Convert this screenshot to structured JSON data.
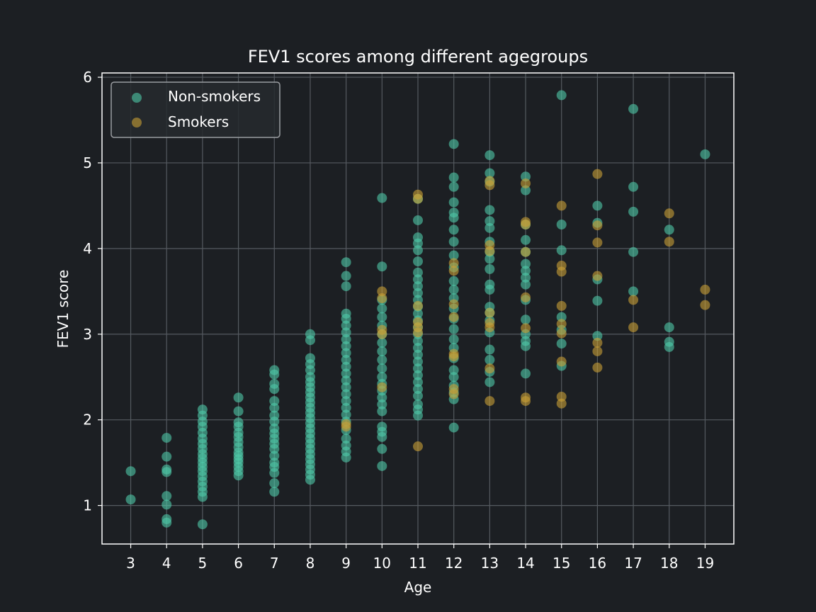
{
  "chart_data": {
    "type": "scatter",
    "title": "FEV1 scores among different agegroups",
    "xlabel": "Age",
    "ylabel": "FEV1 score",
    "xlim": [
      2.2,
      19.8
    ],
    "ylim": [
      0.55,
      6.05
    ],
    "xticks": [
      3,
      4,
      5,
      6,
      7,
      8,
      9,
      10,
      11,
      12,
      13,
      14,
      15,
      16,
      17,
      18,
      19
    ],
    "yticks": [
      1,
      2,
      3,
      4,
      5,
      6
    ],
    "grid": true,
    "legend_position": "top-left",
    "colors": {
      "background": "#1c1f23",
      "frame": "#ffffff",
      "grid": "#555a60",
      "non_smokers": "#4ec9a8",
      "smokers": "#c9a035"
    },
    "series": [
      {
        "name": "Non-smokers",
        "points": [
          [
            3,
            1.4
          ],
          [
            3,
            1.07
          ],
          [
            4,
            1.79
          ],
          [
            4,
            1.57
          ],
          [
            4,
            1.42
          ],
          [
            4,
            1.39
          ],
          [
            4,
            1.11
          ],
          [
            4,
            1.01
          ],
          [
            4,
            0.84
          ],
          [
            4,
            0.8
          ],
          [
            5,
            2.12
          ],
          [
            5,
            2.05
          ],
          [
            5,
            1.98
          ],
          [
            5,
            1.92
          ],
          [
            5,
            1.85
          ],
          [
            5,
            1.78
          ],
          [
            5,
            1.72
          ],
          [
            5,
            1.66
          ],
          [
            5,
            1.6
          ],
          [
            5,
            1.55
          ],
          [
            5,
            1.5
          ],
          [
            5,
            1.45
          ],
          [
            5,
            1.4
          ],
          [
            5,
            1.34
          ],
          [
            5,
            1.28
          ],
          [
            5,
            1.22
          ],
          [
            5,
            1.16
          ],
          [
            5,
            1.1
          ],
          [
            5,
            0.78
          ],
          [
            6,
            2.26
          ],
          [
            6,
            2.1
          ],
          [
            6,
            1.97
          ],
          [
            6,
            1.92
          ],
          [
            6,
            1.85
          ],
          [
            6,
            1.8
          ],
          [
            6,
            1.74
          ],
          [
            6,
            1.68
          ],
          [
            6,
            1.62
          ],
          [
            6,
            1.58
          ],
          [
            6,
            1.54
          ],
          [
            6,
            1.5
          ],
          [
            6,
            1.45
          ],
          [
            6,
            1.4
          ],
          [
            6,
            1.35
          ],
          [
            7,
            2.58
          ],
          [
            7,
            2.53
          ],
          [
            7,
            2.42
          ],
          [
            7,
            2.36
          ],
          [
            7,
            2.22
          ],
          [
            7,
            2.14
          ],
          [
            7,
            2.05
          ],
          [
            7,
            1.98
          ],
          [
            7,
            1.9
          ],
          [
            7,
            1.84
          ],
          [
            7,
            1.78
          ],
          [
            7,
            1.72
          ],
          [
            7,
            1.66
          ],
          [
            7,
            1.58
          ],
          [
            7,
            1.5
          ],
          [
            7,
            1.45
          ],
          [
            7,
            1.38
          ],
          [
            7,
            1.26
          ],
          [
            7,
            1.16
          ],
          [
            8,
            3.0
          ],
          [
            8,
            2.93
          ],
          [
            8,
            2.72
          ],
          [
            8,
            2.65
          ],
          [
            8,
            2.58
          ],
          [
            8,
            2.5
          ],
          [
            8,
            2.44
          ],
          [
            8,
            2.38
          ],
          [
            8,
            2.32
          ],
          [
            8,
            2.26
          ],
          [
            8,
            2.2
          ],
          [
            8,
            2.14
          ],
          [
            8,
            2.08
          ],
          [
            8,
            2.02
          ],
          [
            8,
            1.96
          ],
          [
            8,
            1.9
          ],
          [
            8,
            1.84
          ],
          [
            8,
            1.78
          ],
          [
            8,
            1.72
          ],
          [
            8,
            1.66
          ],
          [
            8,
            1.6
          ],
          [
            8,
            1.54
          ],
          [
            8,
            1.48
          ],
          [
            8,
            1.42
          ],
          [
            8,
            1.36
          ],
          [
            8,
            1.3
          ],
          [
            9,
            3.84
          ],
          [
            9,
            3.68
          ],
          [
            9,
            3.56
          ],
          [
            9,
            3.24
          ],
          [
            9,
            3.18
          ],
          [
            9,
            3.1
          ],
          [
            9,
            3.02
          ],
          [
            9,
            2.94
          ],
          [
            9,
            2.86
          ],
          [
            9,
            2.78
          ],
          [
            9,
            2.7
          ],
          [
            9,
            2.62
          ],
          [
            9,
            2.54
          ],
          [
            9,
            2.46
          ],
          [
            9,
            2.38
          ],
          [
            9,
            2.3
          ],
          [
            9,
            2.22
          ],
          [
            9,
            2.14
          ],
          [
            9,
            2.06
          ],
          [
            9,
            1.98
          ],
          [
            9,
            1.88
          ],
          [
            9,
            1.78
          ],
          [
            9,
            1.7
          ],
          [
            9,
            1.63
          ],
          [
            9,
            1.56
          ],
          [
            10,
            4.59
          ],
          [
            10,
            3.79
          ],
          [
            10,
            3.4
          ],
          [
            10,
            3.3
          ],
          [
            10,
            3.2
          ],
          [
            10,
            3.1
          ],
          [
            10,
            3.0
          ],
          [
            10,
            2.9
          ],
          [
            10,
            2.8
          ],
          [
            10,
            2.7
          ],
          [
            10,
            2.6
          ],
          [
            10,
            2.5
          ],
          [
            10,
            2.42
          ],
          [
            10,
            2.34
          ],
          [
            10,
            2.26
          ],
          [
            10,
            2.18
          ],
          [
            10,
            2.1
          ],
          [
            10,
            1.92
          ],
          [
            10,
            1.86
          ],
          [
            10,
            1.8
          ],
          [
            10,
            1.66
          ],
          [
            10,
            1.46
          ],
          [
            11,
            4.58
          ],
          [
            11,
            4.33
          ],
          [
            11,
            4.13
          ],
          [
            11,
            4.06
          ],
          [
            11,
            3.98
          ],
          [
            11,
            3.85
          ],
          [
            11,
            3.72
          ],
          [
            11,
            3.64
          ],
          [
            11,
            3.56
          ],
          [
            11,
            3.48
          ],
          [
            11,
            3.4
          ],
          [
            11,
            3.32
          ],
          [
            11,
            3.24
          ],
          [
            11,
            3.16
          ],
          [
            11,
            3.08
          ],
          [
            11,
            3.0
          ],
          [
            11,
            2.92
          ],
          [
            11,
            2.84
          ],
          [
            11,
            2.76
          ],
          [
            11,
            2.68
          ],
          [
            11,
            2.6
          ],
          [
            11,
            2.52
          ],
          [
            11,
            2.44
          ],
          [
            11,
            2.36
          ],
          [
            11,
            2.28
          ],
          [
            11,
            2.18
          ],
          [
            11,
            2.12
          ],
          [
            11,
            2.05
          ],
          [
            12,
            5.22
          ],
          [
            12,
            4.83
          ],
          [
            12,
            4.72
          ],
          [
            12,
            4.54
          ],
          [
            12,
            4.42
          ],
          [
            12,
            4.36
          ],
          [
            12,
            4.22
          ],
          [
            12,
            4.08
          ],
          [
            12,
            3.92
          ],
          [
            12,
            3.78
          ],
          [
            12,
            3.62
          ],
          [
            12,
            3.52
          ],
          [
            12,
            3.42
          ],
          [
            12,
            3.3
          ],
          [
            12,
            3.18
          ],
          [
            12,
            3.06
          ],
          [
            12,
            2.94
          ],
          [
            12,
            2.84
          ],
          [
            12,
            2.72
          ],
          [
            12,
            2.58
          ],
          [
            12,
            2.5
          ],
          [
            12,
            2.4
          ],
          [
            12,
            2.32
          ],
          [
            12,
            2.24
          ],
          [
            12,
            1.91
          ],
          [
            13,
            5.09
          ],
          [
            13,
            4.88
          ],
          [
            13,
            4.78
          ],
          [
            13,
            4.45
          ],
          [
            13,
            4.32
          ],
          [
            13,
            4.24
          ],
          [
            13,
            4.08
          ],
          [
            13,
            3.96
          ],
          [
            13,
            3.88
          ],
          [
            13,
            3.76
          ],
          [
            13,
            3.58
          ],
          [
            13,
            3.52
          ],
          [
            13,
            3.32
          ],
          [
            13,
            3.25
          ],
          [
            13,
            3.16
          ],
          [
            13,
            3.02
          ],
          [
            13,
            2.82
          ],
          [
            13,
            2.7
          ],
          [
            13,
            2.56
          ],
          [
            13,
            2.44
          ],
          [
            14,
            4.84
          ],
          [
            14,
            4.68
          ],
          [
            14,
            4.28
          ],
          [
            14,
            4.1
          ],
          [
            14,
            3.96
          ],
          [
            14,
            3.82
          ],
          [
            14,
            3.74
          ],
          [
            14,
            3.66
          ],
          [
            14,
            3.58
          ],
          [
            14,
            3.4
          ],
          [
            14,
            3.17
          ],
          [
            14,
            3.0
          ],
          [
            14,
            2.92
          ],
          [
            14,
            2.86
          ],
          [
            14,
            2.54
          ],
          [
            15,
            5.79
          ],
          [
            15,
            4.28
          ],
          [
            15,
            3.98
          ],
          [
            15,
            3.2
          ],
          [
            15,
            3.05
          ],
          [
            15,
            2.89
          ],
          [
            15,
            2.63
          ],
          [
            16,
            4.5
          ],
          [
            16,
            4.3
          ],
          [
            16,
            3.64
          ],
          [
            16,
            3.39
          ],
          [
            16,
            2.98
          ],
          [
            17,
            5.63
          ],
          [
            17,
            4.72
          ],
          [
            17,
            4.43
          ],
          [
            17,
            3.96
          ],
          [
            17,
            3.5
          ],
          [
            18,
            4.22
          ],
          [
            18,
            3.08
          ],
          [
            18,
            2.91
          ],
          [
            18,
            2.85
          ],
          [
            19,
            5.1
          ]
        ]
      },
      {
        "name": "Smokers",
        "points": [
          [
            9,
            1.95
          ],
          [
            9,
            1.92
          ],
          [
            10,
            3.5
          ],
          [
            10,
            3.42
          ],
          [
            10,
            3.05
          ],
          [
            10,
            3.0
          ],
          [
            10,
            2.38
          ],
          [
            11,
            4.63
          ],
          [
            11,
            4.58
          ],
          [
            11,
            3.33
          ],
          [
            11,
            3.14
          ],
          [
            11,
            3.08
          ],
          [
            11,
            3.02
          ],
          [
            11,
            1.69
          ],
          [
            12,
            3.83
          ],
          [
            12,
            3.74
          ],
          [
            12,
            3.35
          ],
          [
            12,
            3.2
          ],
          [
            12,
            2.77
          ],
          [
            12,
            2.74
          ],
          [
            12,
            2.36
          ],
          [
            12,
            2.3
          ],
          [
            13,
            4.79
          ],
          [
            13,
            4.74
          ],
          [
            13,
            4.04
          ],
          [
            13,
            3.97
          ],
          [
            13,
            3.25
          ],
          [
            13,
            3.13
          ],
          [
            13,
            3.08
          ],
          [
            13,
            2.6
          ],
          [
            13,
            2.22
          ],
          [
            14,
            4.76
          ],
          [
            14,
            4.31
          ],
          [
            14,
            4.28
          ],
          [
            14,
            3.96
          ],
          [
            14,
            3.43
          ],
          [
            14,
            3.07
          ],
          [
            14,
            2.26
          ],
          [
            14,
            2.22
          ],
          [
            15,
            4.5
          ],
          [
            15,
            3.8
          ],
          [
            15,
            3.73
          ],
          [
            15,
            3.33
          ],
          [
            15,
            3.12
          ],
          [
            15,
            3.01
          ],
          [
            15,
            2.68
          ],
          [
            15,
            2.27
          ],
          [
            15,
            2.19
          ],
          [
            16,
            4.87
          ],
          [
            16,
            4.27
          ],
          [
            16,
            4.07
          ],
          [
            16,
            3.68
          ],
          [
            16,
            2.9
          ],
          [
            16,
            2.8
          ],
          [
            16,
            2.61
          ],
          [
            17,
            3.4
          ],
          [
            17,
            3.08
          ],
          [
            18,
            4.41
          ],
          [
            18,
            4.08
          ],
          [
            19,
            3.52
          ],
          [
            19,
            3.34
          ]
        ]
      }
    ]
  }
}
